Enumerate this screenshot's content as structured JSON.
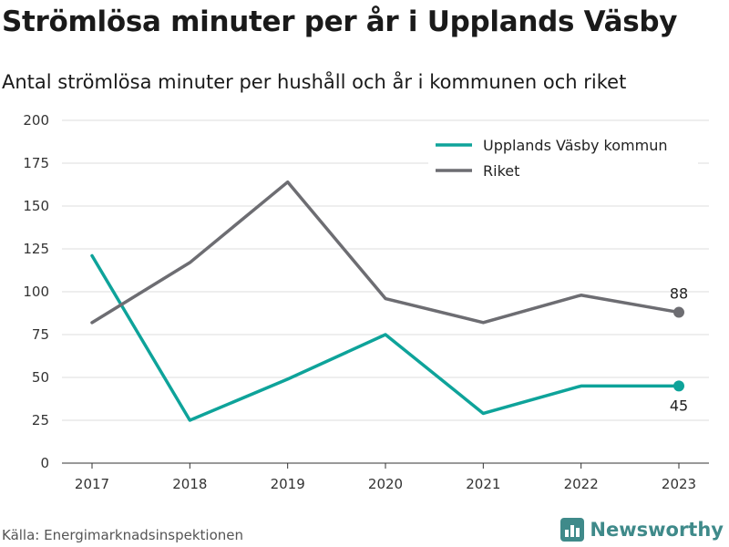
{
  "title": "Strömlösa minuter per år i Upplands Väsby",
  "subtitle": "Antal strömlösa minuter per hushåll och år i kommunen och riket",
  "source": "Källa: Energimarknadsinspektionen",
  "brand": {
    "name": "Newsworthy",
    "logo_icon": "bar-chart-logo-icon",
    "color": "#3f8a8a"
  },
  "chart_data": {
    "type": "line",
    "title": "Strömlösa minuter per år i Upplands Väsby",
    "subtitle": "Antal strömlösa minuter per hushåll och år i kommunen och riket",
    "x": [
      "2017",
      "2018",
      "2019",
      "2020",
      "2021",
      "2022",
      "2023"
    ],
    "y_ticks": [
      0,
      25,
      50,
      75,
      100,
      125,
      150,
      175,
      200
    ],
    "ylim": [
      0,
      200
    ],
    "grid": true,
    "legend_position": "top-right",
    "series": [
      {
        "name": "Upplands Väsby kommun",
        "color": "#0ea39a",
        "values": [
          121,
          25,
          49,
          75,
          29,
          45,
          45
        ],
        "end_label": "45",
        "end_label_position": "below"
      },
      {
        "name": "Riket",
        "color": "#6d6d72",
        "values": [
          82,
          117,
          164,
          96,
          82,
          98,
          88
        ],
        "end_label": "88",
        "end_label_position": "above"
      }
    ]
  }
}
